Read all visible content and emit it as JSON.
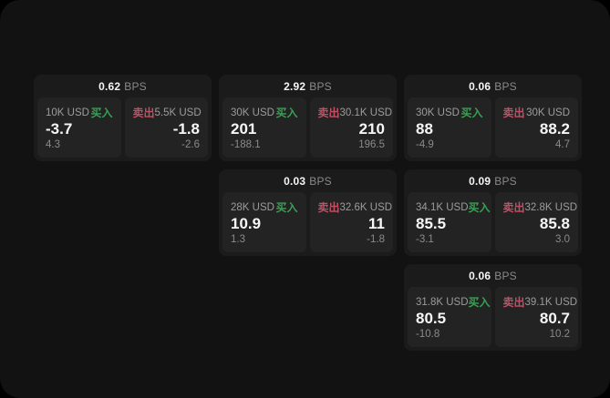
{
  "labels": {
    "bps_unit": "BPS",
    "buy": "买入",
    "sell": "卖出"
  },
  "colors": {
    "pageBg": "#121212",
    "cardBg": "#1b1b1b",
    "panelBg": "#232323",
    "buyGreen": "#3c9e56",
    "sellRed": "#c25064",
    "labelText": "#9c9c9c",
    "dimText": "#8a8a8a"
  },
  "cards": [
    {
      "bps": "0.62",
      "buy": {
        "amount": "10K USD",
        "price": "-3.7",
        "sub": "4.3"
      },
      "sell": {
        "amount": "5.5K USD",
        "price": "-1.8",
        "sub": "-2.6"
      }
    },
    {
      "bps": "2.92",
      "buy": {
        "amount": "30K USD",
        "price": "201",
        "sub": "-188.1"
      },
      "sell": {
        "amount": "30.1K USD",
        "price": "210",
        "sub": "196.5"
      }
    },
    {
      "bps": "0.06",
      "buy": {
        "amount": "30K USD",
        "price": "88",
        "sub": "-4.9"
      },
      "sell": {
        "amount": "30K USD",
        "price": "88.2",
        "sub": "4.7"
      }
    },
    {
      "bps": "0.03",
      "buy": {
        "amount": "28K USD",
        "price": "10.9",
        "sub": "1.3"
      },
      "sell": {
        "amount": "32.6K USD",
        "price": "11",
        "sub": "-1.8"
      }
    },
    {
      "bps": "0.09",
      "buy": {
        "amount": "34.1K USD",
        "price": "85.5",
        "sub": "-3.1"
      },
      "sell": {
        "amount": "32.8K USD",
        "price": "85.8",
        "sub": "3.0"
      }
    },
    {
      "bps": "0.06",
      "buy": {
        "amount": "31.8K USD",
        "price": "80.5",
        "sub": "-10.8"
      },
      "sell": {
        "amount": "39.1K USD",
        "price": "80.7",
        "sub": "10.2"
      }
    }
  ]
}
